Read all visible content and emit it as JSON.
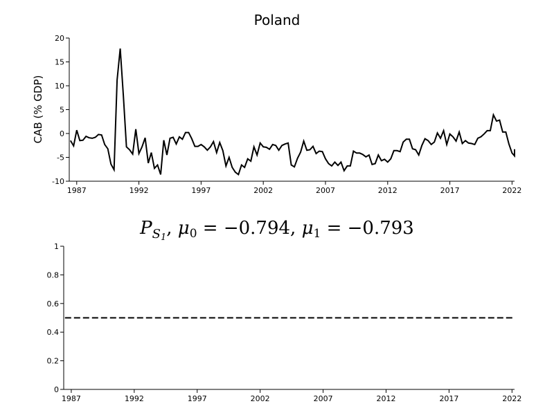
{
  "chart_data": [
    {
      "type": "line",
      "title": "Poland",
      "ylabel": "CAB (% GDP)",
      "xlabel": "",
      "xlim": [
        1986.4,
        2022.2
      ],
      "ylim": [
        -10,
        20
      ],
      "x_ticks": [
        "1987",
        "1992",
        "1997",
        "2002",
        "2007",
        "2012",
        "2017",
        "2022"
      ],
      "y_ticks": [
        "-10",
        "-5",
        "0",
        "5",
        "10",
        "15",
        "20"
      ],
      "grid": false,
      "series": [
        {
          "color": "#000000",
          "points": [
            [
              1986.5,
              -1.5
            ],
            [
              1986.75,
              -2.6
            ],
            [
              1987.0,
              0.7
            ],
            [
              1987.25,
              -1.5
            ],
            [
              1987.5,
              -1.4
            ],
            [
              1987.75,
              -0.6
            ],
            [
              1988.0,
              -0.9
            ],
            [
              1988.25,
              -1.0
            ],
            [
              1988.5,
              -0.8
            ],
            [
              1988.75,
              -0.2
            ],
            [
              1989.0,
              -0.3
            ],
            [
              1989.25,
              -2.3
            ],
            [
              1989.5,
              -3.2
            ],
            [
              1989.75,
              -6.4
            ],
            [
              1990.0,
              -7.6
            ],
            [
              1990.25,
              11.2
            ],
            [
              1990.5,
              17.8
            ],
            [
              1990.75,
              8.0
            ],
            [
              1991.0,
              -2.8
            ],
            [
              1991.25,
              -3.4
            ],
            [
              1991.5,
              -4.3
            ],
            [
              1991.75,
              0.9
            ],
            [
              1992.0,
              -4.2
            ],
            [
              1992.25,
              -2.8
            ],
            [
              1992.5,
              -0.9
            ],
            [
              1992.75,
              -6.2
            ],
            [
              1993.0,
              -4.0
            ],
            [
              1993.25,
              -7.3
            ],
            [
              1993.5,
              -6.6
            ],
            [
              1993.75,
              -8.6
            ],
            [
              1994.0,
              -1.4
            ],
            [
              1994.25,
              -4.5
            ],
            [
              1994.5,
              -1.0
            ],
            [
              1994.75,
              -0.8
            ],
            [
              1995.0,
              -2.2
            ],
            [
              1995.25,
              -0.7
            ],
            [
              1995.5,
              -1.2
            ],
            [
              1995.75,
              0.2
            ],
            [
              1996.0,
              0.2
            ],
            [
              1996.25,
              -1.1
            ],
            [
              1996.5,
              -2.7
            ],
            [
              1996.75,
              -2.7
            ],
            [
              1997.0,
              -2.3
            ],
            [
              1997.25,
              -2.8
            ],
            [
              1997.5,
              -3.5
            ],
            [
              1997.75,
              -2.8
            ],
            [
              1998.0,
              -1.7
            ],
            [
              1998.25,
              -4.0
            ],
            [
              1998.5,
              -1.9
            ],
            [
              1998.75,
              -3.6
            ],
            [
              1999.0,
              -6.8
            ],
            [
              1999.25,
              -5.0
            ],
            [
              1999.5,
              -7.1
            ],
            [
              1999.75,
              -8.1
            ],
            [
              2000.0,
              -8.6
            ],
            [
              2000.25,
              -6.6
            ],
            [
              2000.5,
              -7.1
            ],
            [
              2000.75,
              -5.3
            ],
            [
              2001.0,
              -5.8
            ],
            [
              2001.25,
              -2.8
            ],
            [
              2001.5,
              -4.5
            ],
            [
              2001.75,
              -2.0
            ],
            [
              2002.0,
              -2.8
            ],
            [
              2002.25,
              -2.9
            ],
            [
              2002.5,
              -3.3
            ],
            [
              2002.75,
              -2.3
            ],
            [
              2003.0,
              -2.5
            ],
            [
              2003.25,
              -3.5
            ],
            [
              2003.5,
              -2.5
            ],
            [
              2003.75,
              -2.2
            ],
            [
              2004.0,
              -2.0
            ],
            [
              2004.25,
              -6.6
            ],
            [
              2004.5,
              -7.0
            ],
            [
              2004.75,
              -5.2
            ],
            [
              2005.0,
              -3.9
            ],
            [
              2005.25,
              -1.6
            ],
            [
              2005.5,
              -3.5
            ],
            [
              2005.75,
              -3.4
            ],
            [
              2006.0,
              -2.7
            ],
            [
              2006.25,
              -4.2
            ],
            [
              2006.5,
              -3.7
            ],
            [
              2006.75,
              -3.8
            ],
            [
              2007.0,
              -5.3
            ],
            [
              2007.25,
              -6.3
            ],
            [
              2007.5,
              -6.8
            ],
            [
              2007.75,
              -6.0
            ],
            [
              2008.0,
              -6.7
            ],
            [
              2008.25,
              -6.0
            ],
            [
              2008.5,
              -7.8
            ],
            [
              2008.75,
              -6.8
            ],
            [
              2009.0,
              -6.8
            ],
            [
              2009.25,
              -3.7
            ],
            [
              2009.5,
              -4.1
            ],
            [
              2009.75,
              -4.1
            ],
            [
              2010.0,
              -4.4
            ],
            [
              2010.25,
              -4.9
            ],
            [
              2010.5,
              -4.5
            ],
            [
              2010.75,
              -6.5
            ],
            [
              2011.0,
              -6.3
            ],
            [
              2011.25,
              -4.5
            ],
            [
              2011.5,
              -5.7
            ],
            [
              2011.75,
              -5.4
            ],
            [
              2012.0,
              -6.0
            ],
            [
              2012.25,
              -5.3
            ],
            [
              2012.5,
              -3.6
            ],
            [
              2012.75,
              -3.6
            ],
            [
              2013.0,
              -3.8
            ],
            [
              2013.25,
              -1.8
            ],
            [
              2013.5,
              -1.2
            ],
            [
              2013.75,
              -1.2
            ],
            [
              2014.0,
              -3.2
            ],
            [
              2014.25,
              -3.4
            ],
            [
              2014.5,
              -4.5
            ],
            [
              2014.75,
              -2.5
            ],
            [
              2015.0,
              -1.1
            ],
            [
              2015.25,
              -1.5
            ],
            [
              2015.5,
              -2.3
            ],
            [
              2015.75,
              -1.8
            ],
            [
              2016.0,
              0.1
            ],
            [
              2016.25,
              -1.0
            ],
            [
              2016.5,
              0.6
            ],
            [
              2016.75,
              -2.3
            ],
            [
              2017.0,
              -0.1
            ],
            [
              2017.25,
              -0.7
            ],
            [
              2017.5,
              -1.6
            ],
            [
              2017.75,
              0.3
            ],
            [
              2018.0,
              -2.1
            ],
            [
              2018.25,
              -1.5
            ],
            [
              2018.5,
              -2.0
            ],
            [
              2018.75,
              -2.1
            ],
            [
              2019.0,
              -2.3
            ],
            [
              2019.25,
              -1.0
            ],
            [
              2019.5,
              -0.7
            ],
            [
              2019.75,
              -0.1
            ],
            [
              2020.0,
              0.6
            ],
            [
              2020.25,
              0.6
            ],
            [
              2020.5,
              3.9
            ],
            [
              2020.75,
              2.6
            ],
            [
              2021.0,
              2.8
            ],
            [
              2021.25,
              0.3
            ],
            [
              2021.5,
              0.3
            ],
            [
              2021.75,
              -2.2
            ],
            [
              2022.0,
              -4.1
            ],
            [
              2022.25,
              -4.7
            ],
            [
              2022.4,
              -3.3
            ]
          ]
        }
      ]
    },
    {
      "type": "line",
      "title": "P_{S_1}, μ0 = −0.794, μ1 = −0.793",
      "title_parts": {
        "P": "P",
        "S": "S",
        "one": "1",
        "mu": "μ",
        "zero_sub": "0",
        "one_sub": "1",
        "eq0": " = −0.794, ",
        "eq1": " = −0.793"
      },
      "xlabel": "",
      "ylabel": "",
      "xlim": [
        1986.4,
        2022.2
      ],
      "ylim": [
        0,
        1
      ],
      "x_ticks": [
        "1987",
        "1992",
        "1997",
        "2002",
        "2007",
        "2012",
        "2017",
        "2022"
      ],
      "y_ticks": [
        "0",
        "0.2",
        "0.4",
        "0.6",
        "0.8",
        "1"
      ],
      "grid": false,
      "series": [
        {
          "style": "dashed",
          "color": "#000000",
          "points": [
            [
              1986.5,
              0.5
            ],
            [
              2022.2,
              0.5
            ]
          ]
        }
      ]
    }
  ]
}
